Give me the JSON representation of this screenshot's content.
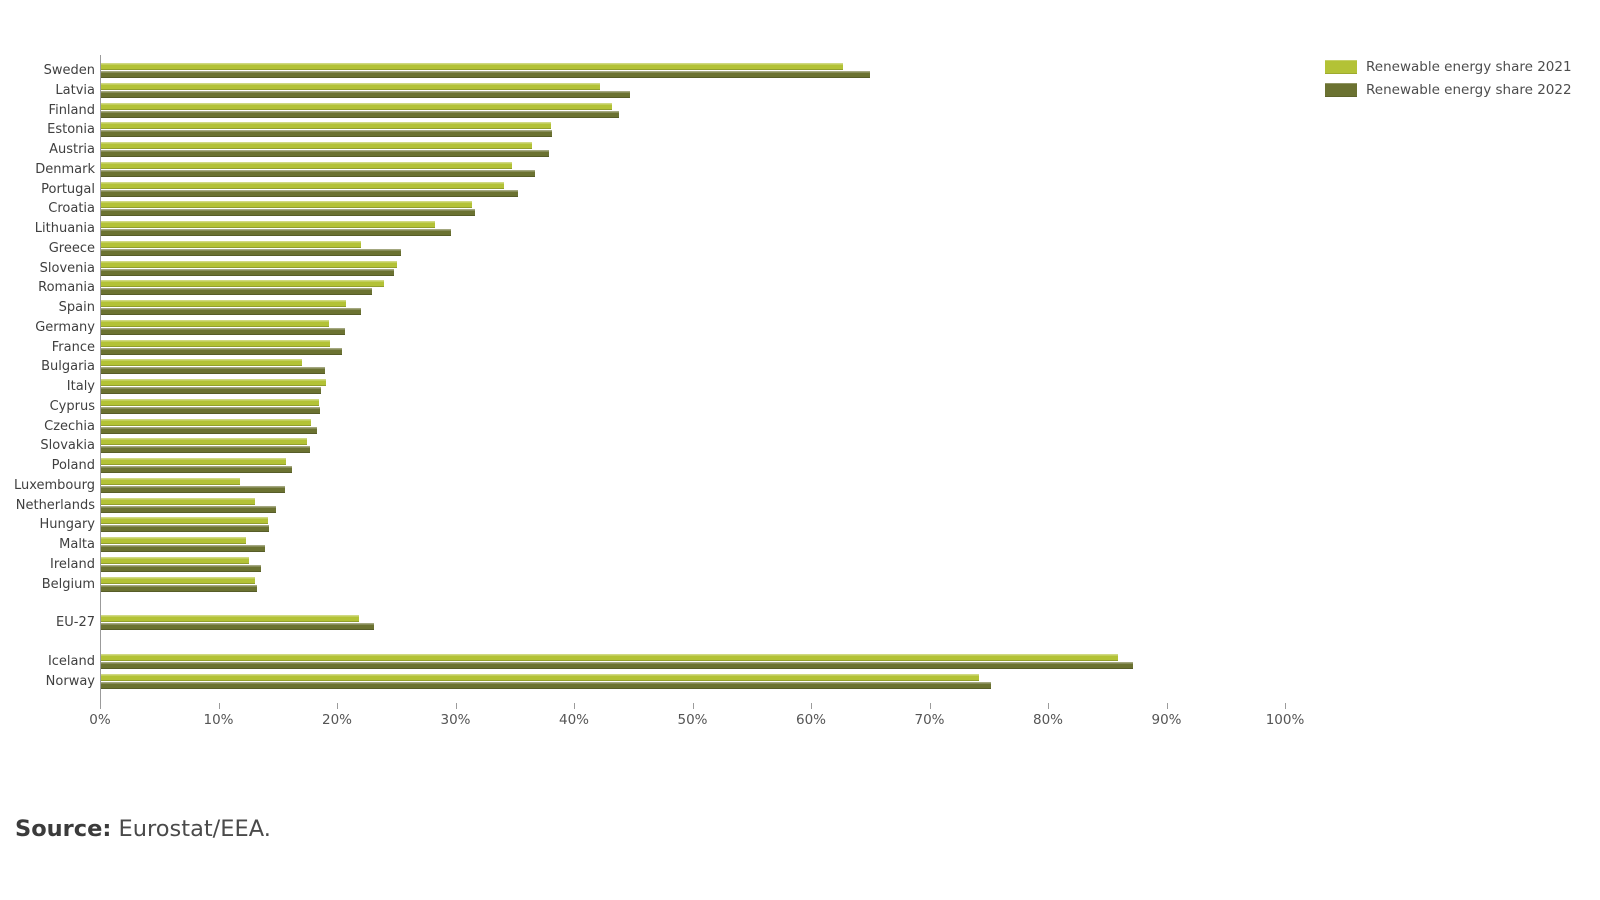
{
  "legend": {
    "items": [
      {
        "label": "Renewable energy share 2021",
        "color": "#b3c236"
      },
      {
        "label": "Renewable energy share 2022",
        "color": "#6b7231"
      }
    ]
  },
  "source": {
    "prefix": "Source:",
    "text": " Eurostat/EEA."
  },
  "chart_data": {
    "type": "bar",
    "orientation": "horizontal",
    "title": "",
    "xlabel": "",
    "ylabel": "",
    "xlim": [
      0,
      100
    ],
    "x_ticks": [
      "0%",
      "10%",
      "20%",
      "30%",
      "40%",
      "50%",
      "60%",
      "70%",
      "80%",
      "90%",
      "100%"
    ],
    "grid": false,
    "legend_position": "top-right",
    "categories": [
      "Sweden",
      "Latvia",
      "Finland",
      "Estonia",
      "Austria",
      "Denmark",
      "Portugal",
      "Croatia",
      "Lithuania",
      "Greece",
      "Slovenia",
      "Romania",
      "Spain",
      "Germany",
      "France",
      "Bulgaria",
      "Italy",
      "Cyprus",
      "Czechia",
      "Slovakia",
      "Poland",
      "Luxembourg",
      "Netherlands",
      "Hungary",
      "Malta",
      "Ireland",
      "Belgium",
      "EU-27",
      "Iceland",
      "Norway"
    ],
    "gaps_after": [
      "Belgium",
      "EU-27"
    ],
    "series": [
      {
        "name": "Renewable energy share 2021",
        "color": "#b3c236",
        "values": [
          62.6,
          42.1,
          43.1,
          38.0,
          36.4,
          34.7,
          34.0,
          31.3,
          28.2,
          21.9,
          25.0,
          23.9,
          20.7,
          19.2,
          19.3,
          17.0,
          19.0,
          18.4,
          17.7,
          17.4,
          15.6,
          11.7,
          13.0,
          14.1,
          12.2,
          12.5,
          13.0,
          21.8,
          85.8,
          74.1
        ]
      },
      {
        "name": "Renewable energy share 2022",
        "color": "#6b7231",
        "values": [
          64.9,
          44.6,
          43.7,
          38.1,
          37.8,
          36.6,
          35.2,
          31.6,
          29.5,
          25.3,
          24.7,
          22.9,
          21.9,
          20.6,
          20.3,
          18.9,
          18.6,
          18.5,
          18.2,
          17.6,
          16.1,
          15.5,
          14.8,
          14.2,
          13.8,
          13.5,
          13.2,
          23.0,
          87.1,
          75.1
        ]
      }
    ]
  }
}
